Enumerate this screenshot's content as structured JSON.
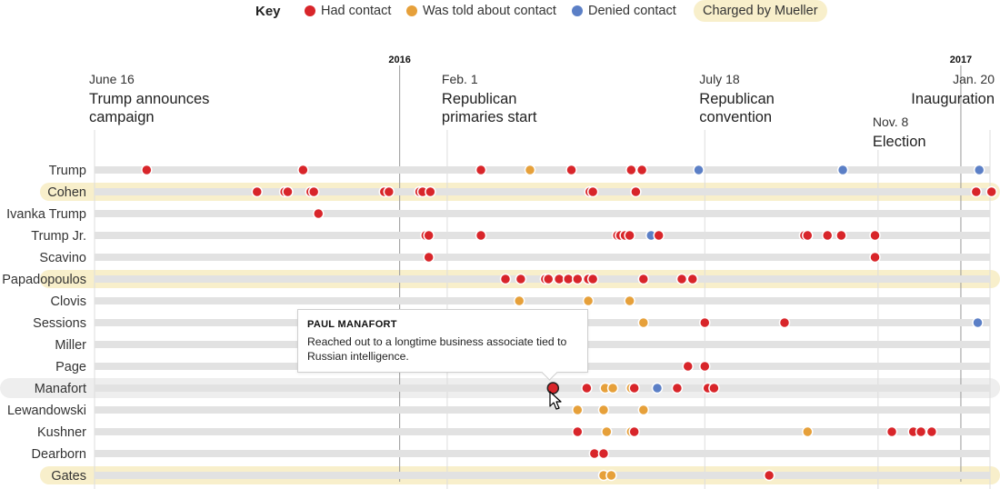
{
  "legend": {
    "title": "Key",
    "had_contact": "Had contact",
    "told_about": "Was told about contact",
    "denied": "Denied contact",
    "charged": "Charged by Mueller"
  },
  "colors": {
    "had_contact": "#d8252a",
    "told_about": "#e6a03a",
    "denied": "#5b7fc6",
    "charged_bg": "#f8efcb",
    "track": "#e2e2e2"
  },
  "tooltip": {
    "title": "PAUL MANAFORT",
    "text_line1": "Reached out to a longtime business associate tied to",
    "text_line2": "Russian intelligence."
  },
  "chart_data": {
    "type": "scatter",
    "x_axis": {
      "type": "time",
      "start": "2015-06-16",
      "end": "2017-01-20"
    },
    "years": [
      {
        "label": "2016",
        "date": "2016-01-01"
      },
      {
        "label": "2017",
        "date": "2017-01-01"
      }
    ],
    "milestones": [
      {
        "date_label": "June 16",
        "title": [
          "Trump announces",
          "campaign"
        ],
        "date": "2015-06-16",
        "align": "start"
      },
      {
        "date_label": "Feb. 1",
        "title": [
          "Republican",
          "primaries start"
        ],
        "date": "2016-02-01",
        "align": "start"
      },
      {
        "date_label": "July 18",
        "title": [
          "Republican",
          "convention"
        ],
        "date": "2016-07-18",
        "align": "start"
      },
      {
        "date_label": "Nov. 8",
        "title": [
          "Election"
        ],
        "date": "2016-11-08",
        "align": "start",
        "low": true
      },
      {
        "date_label": "Jan. 20",
        "title": [
          "Inauguration"
        ],
        "date": "2017-01-20",
        "align": "end"
      }
    ],
    "rows": [
      {
        "name": "Trump",
        "charged": false,
        "events": [
          {
            "date": "2015-07-20",
            "type": "had_contact"
          },
          {
            "date": "2015-10-30",
            "type": "had_contact"
          },
          {
            "date": "2016-02-23",
            "type": "had_contact"
          },
          {
            "date": "2016-03-26",
            "type": "told_about"
          },
          {
            "date": "2016-04-22",
            "type": "had_contact"
          },
          {
            "date": "2016-05-31",
            "type": "had_contact"
          },
          {
            "date": "2016-06-07",
            "type": "had_contact"
          },
          {
            "date": "2016-07-14",
            "type": "denied"
          },
          {
            "date": "2016-10-16",
            "type": "denied"
          },
          {
            "date": "2017-01-13",
            "type": "denied"
          }
        ]
      },
      {
        "name": "Cohen",
        "charged": true,
        "events": [
          {
            "date": "2015-09-30",
            "type": "had_contact"
          },
          {
            "date": "2015-10-18",
            "type": "had_contact"
          },
          {
            "date": "2015-10-20",
            "type": "had_contact"
          },
          {
            "date": "2015-11-04",
            "type": "had_contact"
          },
          {
            "date": "2015-11-06",
            "type": "had_contact"
          },
          {
            "date": "2015-12-22",
            "type": "had_contact"
          },
          {
            "date": "2015-12-25",
            "type": "had_contact"
          },
          {
            "date": "2016-01-14",
            "type": "had_contact"
          },
          {
            "date": "2016-01-16",
            "type": "had_contact"
          },
          {
            "date": "2016-01-21",
            "type": "had_contact"
          },
          {
            "date": "2016-05-04",
            "type": "had_contact"
          },
          {
            "date": "2016-05-06",
            "type": "had_contact"
          },
          {
            "date": "2016-06-03",
            "type": "had_contact"
          },
          {
            "date": "2017-01-11",
            "type": "had_contact"
          },
          {
            "date": "2017-01-21",
            "type": "had_contact"
          }
        ]
      },
      {
        "name": "Ivanka Trump",
        "charged": false,
        "events": [
          {
            "date": "2015-11-09",
            "type": "had_contact"
          }
        ]
      },
      {
        "name": "Trump Jr.",
        "charged": false,
        "events": [
          {
            "date": "2016-01-18",
            "type": "had_contact"
          },
          {
            "date": "2016-01-20",
            "type": "had_contact"
          },
          {
            "date": "2016-02-23",
            "type": "had_contact"
          },
          {
            "date": "2016-05-22",
            "type": "had_contact"
          },
          {
            "date": "2016-05-24",
            "type": "had_contact"
          },
          {
            "date": "2016-05-27",
            "type": "had_contact"
          },
          {
            "date": "2016-05-30",
            "type": "had_contact"
          },
          {
            "date": "2016-06-13",
            "type": "denied"
          },
          {
            "date": "2016-06-18",
            "type": "had_contact"
          },
          {
            "date": "2016-09-21",
            "type": "had_contact"
          },
          {
            "date": "2016-09-23",
            "type": "had_contact"
          },
          {
            "date": "2016-10-06",
            "type": "had_contact"
          },
          {
            "date": "2016-10-15",
            "type": "had_contact"
          },
          {
            "date": "2016-11-06",
            "type": "had_contact"
          }
        ]
      },
      {
        "name": "Scavino",
        "charged": false,
        "events": [
          {
            "date": "2016-01-20",
            "type": "had_contact"
          },
          {
            "date": "2016-11-06",
            "type": "had_contact"
          }
        ]
      },
      {
        "name": "Papadopoulos",
        "charged": true,
        "events": [
          {
            "date": "2016-03-10",
            "type": "had_contact"
          },
          {
            "date": "2016-03-20",
            "type": "had_contact"
          },
          {
            "date": "2016-04-05",
            "type": "had_contact"
          },
          {
            "date": "2016-04-07",
            "type": "had_contact"
          },
          {
            "date": "2016-04-14",
            "type": "had_contact"
          },
          {
            "date": "2016-04-20",
            "type": "had_contact"
          },
          {
            "date": "2016-04-26",
            "type": "had_contact"
          },
          {
            "date": "2016-05-03",
            "type": "had_contact"
          },
          {
            "date": "2016-05-06",
            "type": "had_contact"
          },
          {
            "date": "2016-06-08",
            "type": "had_contact"
          },
          {
            "date": "2016-07-03",
            "type": "had_contact"
          },
          {
            "date": "2016-07-10",
            "type": "had_contact"
          }
        ]
      },
      {
        "name": "Clovis",
        "charged": false,
        "events": [
          {
            "date": "2016-03-19",
            "type": "told_about"
          },
          {
            "date": "2016-05-03",
            "type": "told_about"
          },
          {
            "date": "2016-05-30",
            "type": "told_about"
          }
        ]
      },
      {
        "name": "Sessions",
        "charged": false,
        "events": [
          {
            "date": "2016-06-08",
            "type": "told_about"
          },
          {
            "date": "2016-07-18",
            "type": "had_contact"
          },
          {
            "date": "2016-09-08",
            "type": "had_contact"
          },
          {
            "date": "2017-01-12",
            "type": "denied"
          }
        ]
      },
      {
        "name": "Miller",
        "charged": false,
        "events": []
      },
      {
        "name": "Page",
        "charged": false,
        "events": [
          {
            "date": "2016-07-07",
            "type": "had_contact"
          },
          {
            "date": "2016-07-18",
            "type": "had_contact"
          }
        ]
      },
      {
        "name": "Manafort",
        "charged": true,
        "events": [
          {
            "date": "2016-04-10",
            "type": "had_contact",
            "selected": true
          },
          {
            "date": "2016-05-02",
            "type": "had_contact"
          },
          {
            "date": "2016-05-14",
            "type": "told_about"
          },
          {
            "date": "2016-05-19",
            "type": "told_about"
          },
          {
            "date": "2016-05-31",
            "type": "told_about"
          },
          {
            "date": "2016-06-02",
            "type": "had_contact"
          },
          {
            "date": "2016-06-17",
            "type": "denied"
          },
          {
            "date": "2016-06-30",
            "type": "had_contact"
          },
          {
            "date": "2016-07-20",
            "type": "had_contact"
          },
          {
            "date": "2016-07-24",
            "type": "had_contact"
          }
        ],
        "highlight": true
      },
      {
        "name": "Lewandowski",
        "charged": false,
        "events": [
          {
            "date": "2016-04-26",
            "type": "told_about"
          },
          {
            "date": "2016-05-13",
            "type": "told_about"
          },
          {
            "date": "2016-06-08",
            "type": "told_about"
          }
        ]
      },
      {
        "name": "Kushner",
        "charged": false,
        "events": [
          {
            "date": "2016-04-26",
            "type": "had_contact"
          },
          {
            "date": "2016-05-15",
            "type": "told_about"
          },
          {
            "date": "2016-05-31",
            "type": "told_about"
          },
          {
            "date": "2016-06-02",
            "type": "had_contact"
          },
          {
            "date": "2016-09-23",
            "type": "told_about"
          },
          {
            "date": "2016-11-17",
            "type": "had_contact"
          },
          {
            "date": "2016-12-01",
            "type": "had_contact"
          },
          {
            "date": "2016-12-06",
            "type": "had_contact"
          },
          {
            "date": "2016-12-13",
            "type": "had_contact"
          }
        ]
      },
      {
        "name": "Dearborn",
        "charged": false,
        "events": [
          {
            "date": "2016-05-07",
            "type": "had_contact"
          },
          {
            "date": "2016-05-13",
            "type": "had_contact"
          }
        ]
      },
      {
        "name": "Gates",
        "charged": true,
        "events": [
          {
            "date": "2016-05-13",
            "type": "told_about"
          },
          {
            "date": "2016-05-18",
            "type": "told_about"
          },
          {
            "date": "2016-08-29",
            "type": "had_contact"
          }
        ]
      }
    ]
  }
}
